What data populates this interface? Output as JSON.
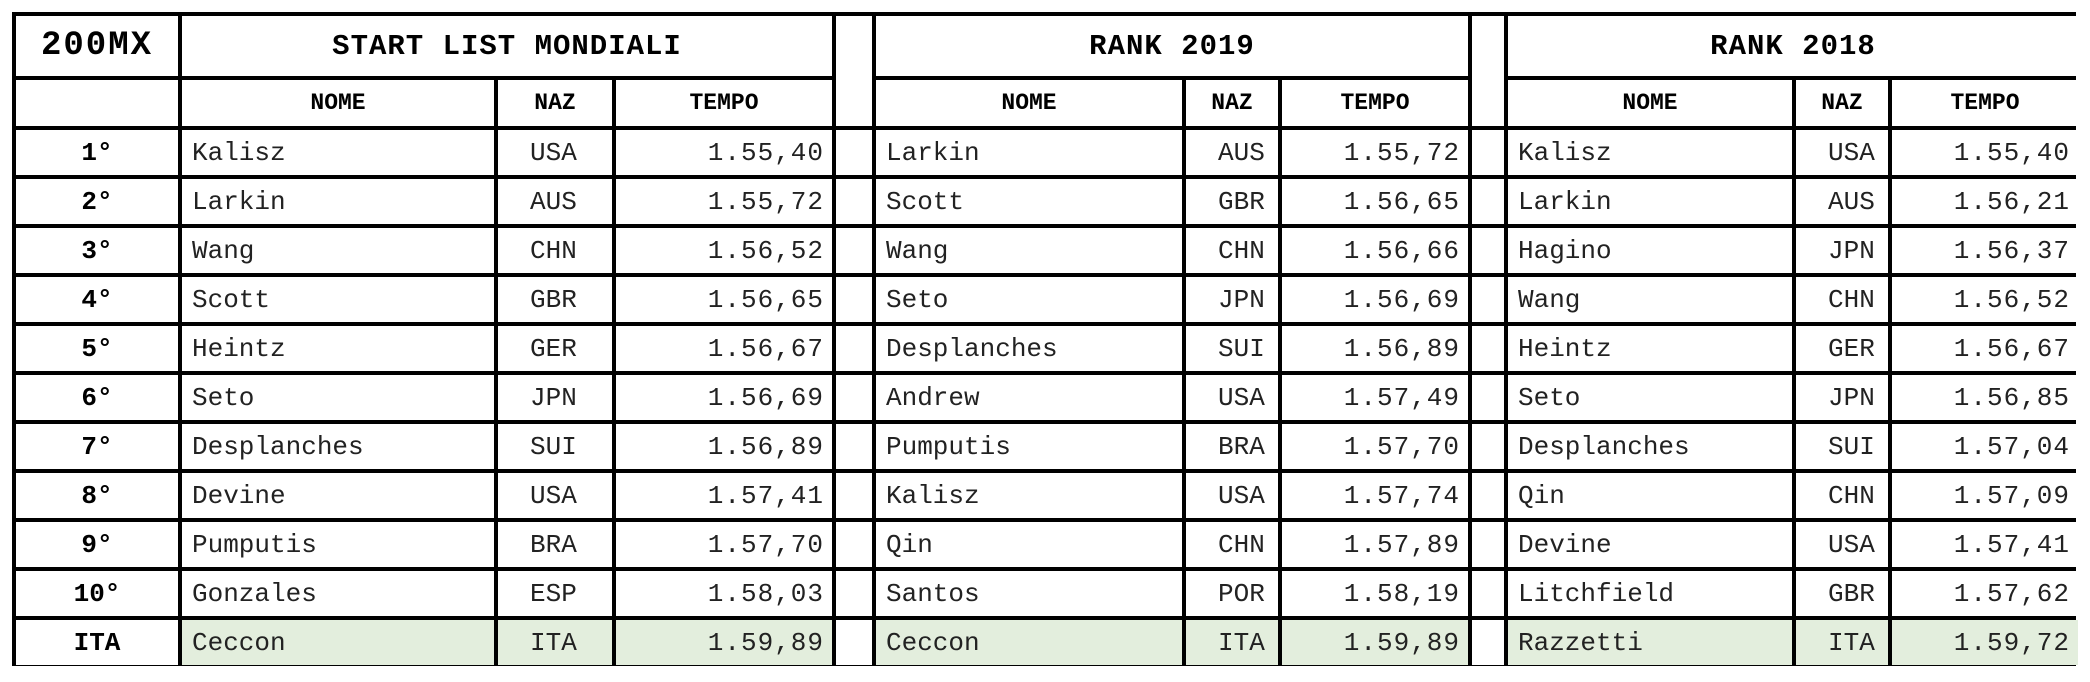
{
  "title": {
    "event": "200MX",
    "start_list": "START LIST MONDIALI",
    "rank_2019": "RANK 2019",
    "rank_2018": "RANK 2018"
  },
  "columns": {
    "nome": "NOME",
    "naz": "NAZ",
    "tempo": "TEMPO"
  },
  "positions": [
    "1°",
    "2°",
    "3°",
    "4°",
    "5°",
    "6°",
    "7°",
    "8°",
    "9°",
    "10°",
    "ITA"
  ],
  "start_list": [
    {
      "nome": "Kalisz",
      "naz": "USA",
      "tempo": "1.55,40"
    },
    {
      "nome": "Larkin",
      "naz": "AUS",
      "tempo": "1.55,72"
    },
    {
      "nome": "Wang",
      "naz": "CHN",
      "tempo": "1.56,52"
    },
    {
      "nome": "Scott",
      "naz": "GBR",
      "tempo": "1.56,65"
    },
    {
      "nome": "Heintz",
      "naz": "GER",
      "tempo": "1.56,67"
    },
    {
      "nome": "Seto",
      "naz": "JPN",
      "tempo": "1.56,69"
    },
    {
      "nome": "Desplanches",
      "naz": "SUI",
      "tempo": "1.56,89"
    },
    {
      "nome": "Devine",
      "naz": "USA",
      "tempo": "1.57,41"
    },
    {
      "nome": "Pumputis",
      "naz": "BRA",
      "tempo": "1.57,70"
    },
    {
      "nome": "Gonzales",
      "naz": "ESP",
      "tempo": "1.58,03"
    },
    {
      "nome": "Ceccon",
      "naz": "ITA",
      "tempo": "1.59,89"
    }
  ],
  "rank_2019": [
    {
      "nome": "Larkin",
      "naz": "AUS",
      "tempo": "1.55,72"
    },
    {
      "nome": "Scott",
      "naz": "GBR",
      "tempo": "1.56,65"
    },
    {
      "nome": "Wang",
      "naz": "CHN",
      "tempo": "1.56,66"
    },
    {
      "nome": "Seto",
      "naz": "JPN",
      "tempo": "1.56,69"
    },
    {
      "nome": "Desplanches",
      "naz": "SUI",
      "tempo": "1.56,89"
    },
    {
      "nome": "Andrew",
      "naz": "USA",
      "tempo": "1.57,49"
    },
    {
      "nome": "Pumputis",
      "naz": "BRA",
      "tempo": "1.57,70"
    },
    {
      "nome": "Kalisz",
      "naz": "USA",
      "tempo": "1.57,74"
    },
    {
      "nome": "Qin",
      "naz": "CHN",
      "tempo": "1.57,89"
    },
    {
      "nome": "Santos",
      "naz": "POR",
      "tempo": "1.58,19"
    },
    {
      "nome": "Ceccon",
      "naz": "ITA",
      "tempo": "1.59,89"
    }
  ],
  "rank_2018": [
    {
      "nome": "Kalisz",
      "naz": "USA",
      "tempo": "1.55,40"
    },
    {
      "nome": "Larkin",
      "naz": "AUS",
      "tempo": "1.56,21"
    },
    {
      "nome": "Hagino",
      "naz": "JPN",
      "tempo": "1.56,37"
    },
    {
      "nome": "Wang",
      "naz": "CHN",
      "tempo": "1.56,52"
    },
    {
      "nome": "Heintz",
      "naz": "GER",
      "tempo": "1.56,67"
    },
    {
      "nome": "Seto",
      "naz": "JPN",
      "tempo": "1.56,85"
    },
    {
      "nome": "Desplanches",
      "naz": "SUI",
      "tempo": "1.57,04"
    },
    {
      "nome": "Qin",
      "naz": "CHN",
      "tempo": "1.57,09"
    },
    {
      "nome": "Devine",
      "naz": "USA",
      "tempo": "1.57,41"
    },
    {
      "nome": "Litchfield",
      "naz": "GBR",
      "tempo": "1.57,62"
    },
    {
      "nome": "Razzetti",
      "naz": "ITA",
      "tempo": "1.59,72"
    }
  ],
  "colors": {
    "ita_highlight": "#e3eedd",
    "grid": "#000000"
  }
}
